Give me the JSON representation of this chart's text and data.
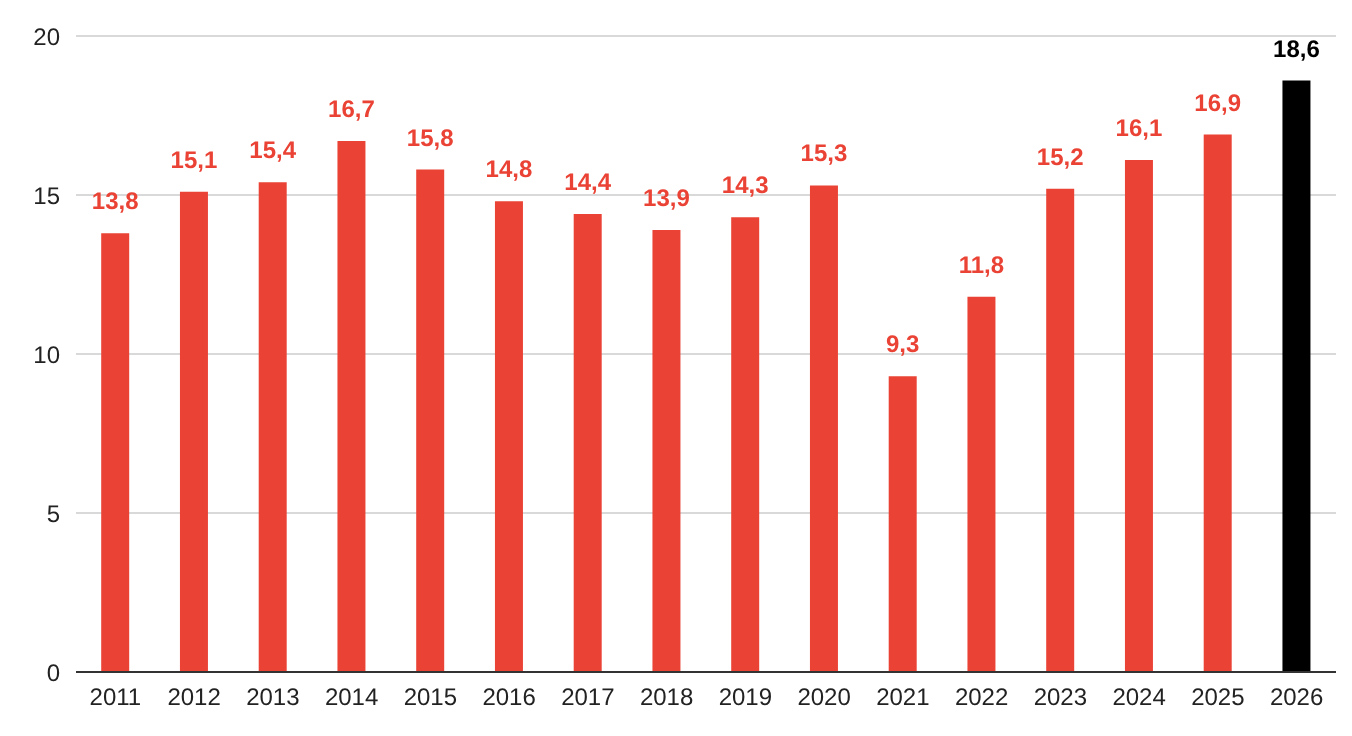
{
  "chart_data": {
    "type": "bar",
    "categories": [
      "2011",
      "2012",
      "2013",
      "2014",
      "2015",
      "2016",
      "2017",
      "2018",
      "2019",
      "2020",
      "2021",
      "2022",
      "2023",
      "2024",
      "2025",
      "2026"
    ],
    "values": [
      13.8,
      15.1,
      15.4,
      16.7,
      15.8,
      14.8,
      14.4,
      13.9,
      14.3,
      15.3,
      9.3,
      11.8,
      15.2,
      16.1,
      16.9,
      18.6
    ],
    "colors": [
      "#ea4335",
      "#ea4335",
      "#ea4335",
      "#ea4335",
      "#ea4335",
      "#ea4335",
      "#ea4335",
      "#ea4335",
      "#ea4335",
      "#ea4335",
      "#ea4335",
      "#ea4335",
      "#ea4335",
      "#ea4335",
      "#ea4335",
      "#000000"
    ],
    "value_labels": [
      "13,8",
      "15,1",
      "15,4",
      "16,7",
      "15,8",
      "14,8",
      "14,4",
      "13,9",
      "14,3",
      "15,3",
      "9,3",
      "11,8",
      "15,2",
      "16,1",
      "16,9",
      "18,6"
    ],
    "ylim": [
      0,
      20
    ],
    "yticks": [
      0,
      5,
      10,
      15,
      20
    ],
    "grid": "y",
    "legend": false
  }
}
